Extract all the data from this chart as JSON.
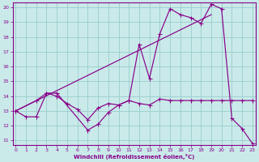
{
  "xlabel": "Windchill (Refroidissement éolien,°C)",
  "xlim": [
    -0.3,
    23.3
  ],
  "ylim": [
    10.7,
    20.3
  ],
  "xticks": [
    0,
    1,
    2,
    3,
    4,
    5,
    6,
    7,
    8,
    9,
    10,
    11,
    12,
    13,
    14,
    15,
    16,
    17,
    18,
    19,
    20,
    21,
    22,
    23
  ],
  "yticks": [
    11,
    12,
    13,
    14,
    15,
    16,
    17,
    18,
    19,
    20
  ],
  "bg_color": "#caeaea",
  "line_color": "#880088",
  "grid_color": "#99cccc",
  "line1_x": [
    0,
    2,
    3,
    4,
    7,
    8,
    9,
    10,
    11,
    12,
    13,
    14,
    15,
    16,
    17,
    18,
    19,
    20,
    21,
    22,
    23
  ],
  "line1_y": [
    13.0,
    13.7,
    14.2,
    14.2,
    11.7,
    12.1,
    12.9,
    13.4,
    13.7,
    17.5,
    15.2,
    18.2,
    19.9,
    19.5,
    19.3,
    18.9,
    20.2,
    19.9,
    12.5,
    11.8,
    10.8
  ],
  "line2_x": [
    0,
    1,
    2,
    3,
    4,
    5,
    6,
    7,
    8,
    9,
    10,
    11,
    12,
    13,
    14,
    15,
    16,
    17,
    18,
    19,
    20,
    21,
    22,
    23
  ],
  "line2_y": [
    13.0,
    12.6,
    12.6,
    14.2,
    14.0,
    13.5,
    13.1,
    12.4,
    13.2,
    13.5,
    13.4,
    13.7,
    13.5,
    13.4,
    13.8,
    13.7,
    13.7,
    13.7,
    13.7,
    13.7,
    13.7,
    13.7,
    13.7,
    13.7
  ],
  "line3_x": [
    0,
    19
  ],
  "line3_y": [
    13.0,
    19.5
  ]
}
